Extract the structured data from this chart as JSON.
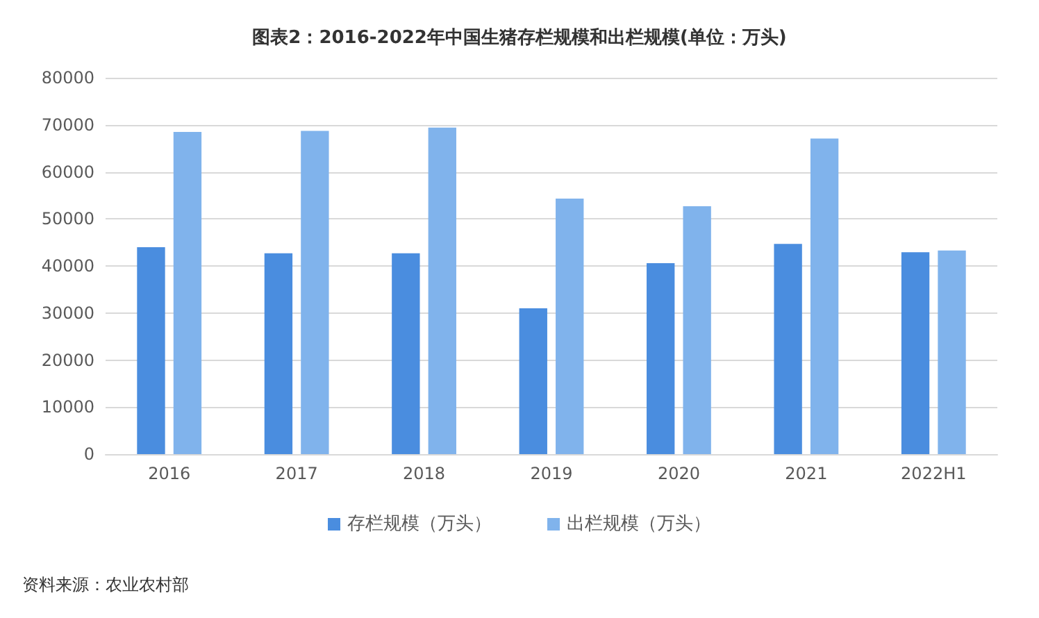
{
  "chart_data": {
    "type": "bar",
    "title": "图表2：2016-2022年中国生猪存栏规模和出栏规模(单位：万头)",
    "categories": [
      "2016",
      "2017",
      "2018",
      "2019",
      "2020",
      "2021",
      "2022H1"
    ],
    "series": [
      {
        "name": "存栏规模（万头）",
        "color": "#4a8ddf",
        "values": [
          44000,
          42700,
          42700,
          31000,
          40600,
          44700,
          42900
        ]
      },
      {
        "name": "出栏规模（万头）",
        "color": "#80b3ec",
        "values": [
          68500,
          68700,
          69400,
          54300,
          52700,
          67100,
          43300
        ]
      }
    ],
    "ylim": [
      0,
      80000
    ],
    "yticks": [
      0,
      10000,
      20000,
      30000,
      40000,
      50000,
      60000,
      70000,
      80000
    ],
    "grid": "y",
    "legend": "bottom",
    "annotations": [
      "资料来源：农业农村部"
    ]
  }
}
